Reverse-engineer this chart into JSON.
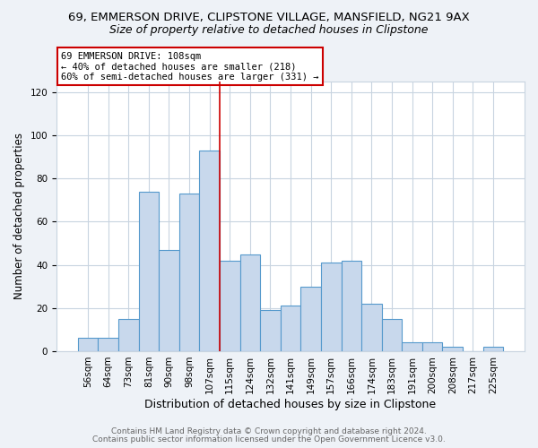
{
  "title1": "69, EMMERSON DRIVE, CLIPSTONE VILLAGE, MANSFIELD, NG21 9AX",
  "title2": "Size of property relative to detached houses in Clipstone",
  "xlabel": "Distribution of detached houses by size in Clipstone",
  "ylabel": "Number of detached properties",
  "bar_labels": [
    "56sqm",
    "64sqm",
    "73sqm",
    "81sqm",
    "90sqm",
    "98sqm",
    "107sqm",
    "115sqm",
    "124sqm",
    "132sqm",
    "141sqm",
    "149sqm",
    "157sqm",
    "166sqm",
    "174sqm",
    "183sqm",
    "191sqm",
    "200sqm",
    "208sqm",
    "217sqm",
    "225sqm"
  ],
  "bar_heights": [
    6,
    6,
    15,
    74,
    47,
    73,
    93,
    42,
    45,
    19,
    21,
    30,
    41,
    42,
    22,
    15,
    4,
    4,
    2,
    0,
    2
  ],
  "bar_color": "#c8d8ec",
  "bar_edge_color": "#5599cc",
  "annotation_box_text": "69 EMMERSON DRIVE: 108sqm\n← 40% of detached houses are smaller (218)\n60% of semi-detached houses are larger (331) →",
  "annotation_box_color": "white",
  "annotation_box_edge_color": "#cc0000",
  "property_line_x": 6,
  "property_line_color": "#cc0000",
  "ylim": [
    0,
    125
  ],
  "yticks": [
    0,
    20,
    40,
    60,
    80,
    100,
    120
  ],
  "footer1": "Contains HM Land Registry data © Crown copyright and database right 2024.",
  "footer2": "Contains public sector information licensed under the Open Government Licence v3.0.",
  "background_color": "#eef2f7",
  "plot_background_color": "#ffffff",
  "grid_color": "#c8d4e0",
  "title1_fontsize": 9.5,
  "title2_fontsize": 9,
  "xlabel_fontsize": 9,
  "ylabel_fontsize": 8.5,
  "tick_fontsize": 7.5,
  "footer_fontsize": 6.5
}
